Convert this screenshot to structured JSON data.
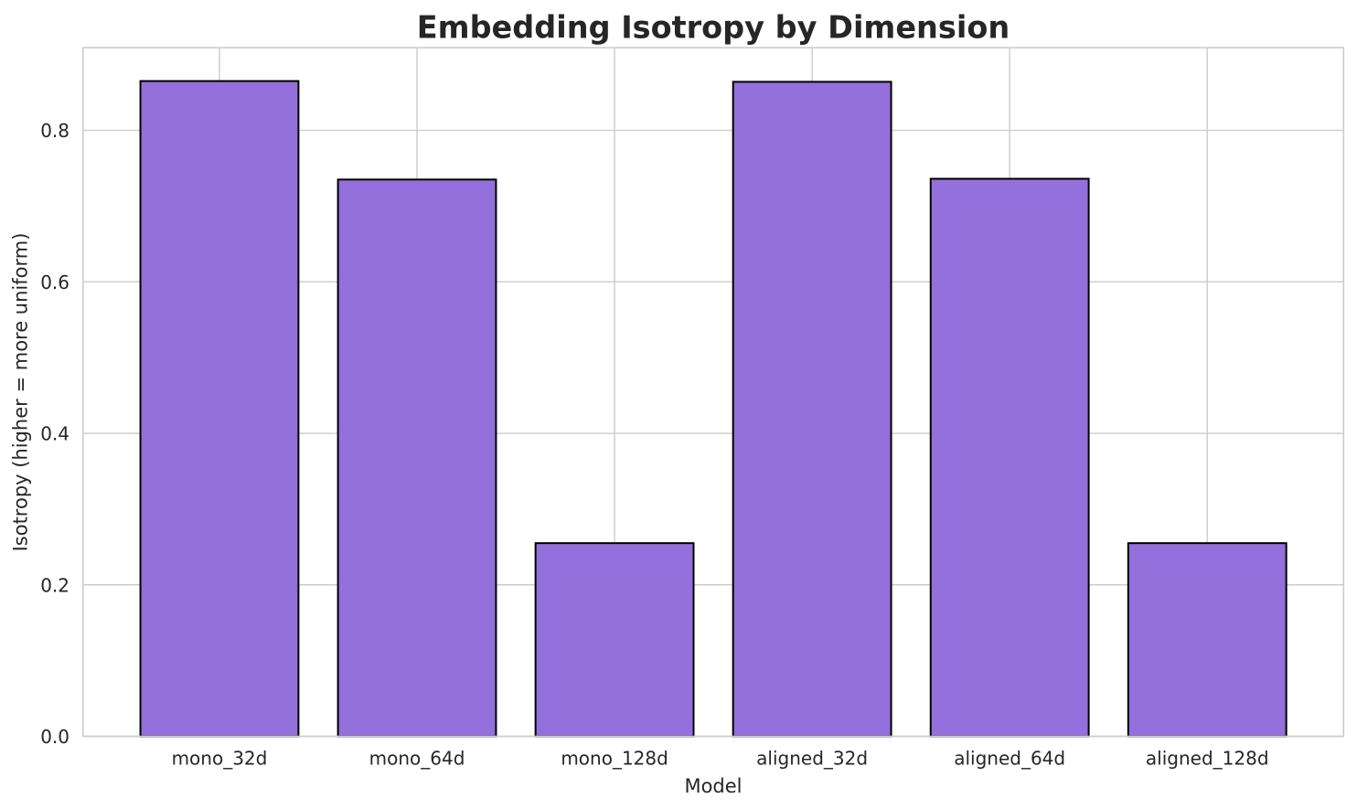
{
  "figure": {
    "background_color": "#ffffff"
  },
  "chart_data": {
    "type": "bar",
    "title": "Embedding Isotropy by Dimension",
    "xlabel": "Model",
    "ylabel": "Isotropy (higher = more uniform)",
    "categories": [
      "mono_32d",
      "mono_64d",
      "mono_128d",
      "aligned_32d",
      "aligned_64d",
      "aligned_128d"
    ],
    "values": [
      0.865,
      0.735,
      0.255,
      0.864,
      0.736,
      0.255
    ],
    "ylim": [
      0,
      0.909
    ],
    "xlim": [
      -0.69,
      5.69
    ],
    "yticks": [
      0.0,
      0.2,
      0.4,
      0.6,
      0.8
    ],
    "ytick_labels": [
      "0.0",
      "0.2",
      "0.4",
      "0.6",
      "0.8"
    ],
    "bar_width": 0.8,
    "grid": true,
    "legend_position": "none",
    "colors": {
      "bar_fill": "#9370db",
      "bar_edge": "#000000",
      "grid_line": "#cccccc",
      "spine": "#cccccc",
      "text": "#262626"
    }
  }
}
